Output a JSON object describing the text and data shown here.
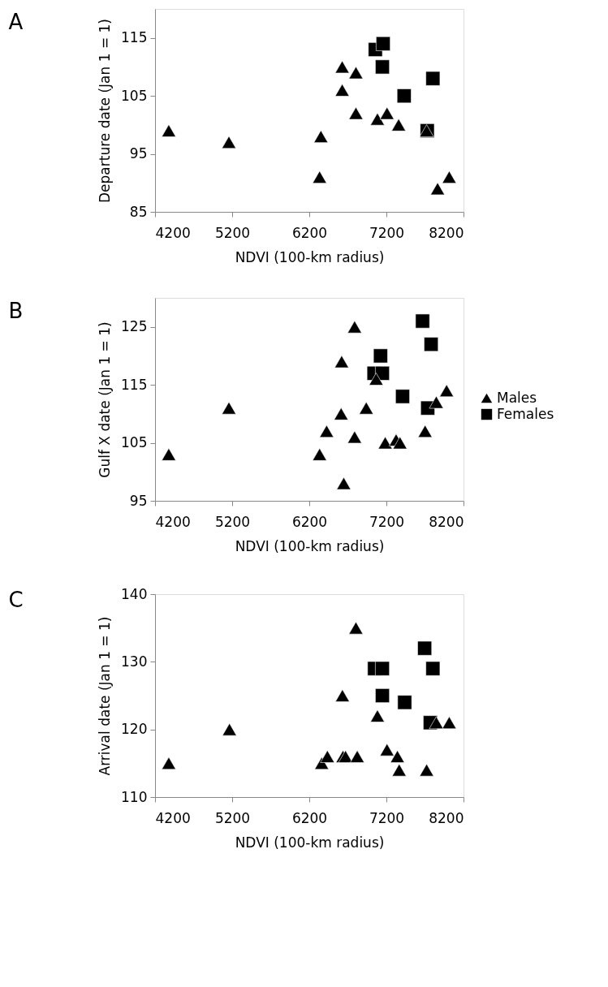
{
  "chart_data": [
    {
      "type": "scatter",
      "title": "A",
      "xlabel": "NDVI (100-km radius)",
      "ylabel": "Departure date (Jan 1 = 1)",
      "xlim": [
        4200,
        8200
      ],
      "xticks": [
        4200,
        5200,
        6200,
        7200,
        8200
      ],
      "ylim": [
        85,
        120
      ],
      "yticks": [
        85,
        95,
        105,
        115
      ],
      "grid": false,
      "legend": false,
      "series": [
        {
          "color": "#000000",
          "marker": "triangle",
          "x": [
            4378,
            5158,
            6351,
            6334,
            6627,
            6805,
            6627,
            6805,
            7084,
            7208,
            7359,
            7722,
            7864,
            8015
          ],
          "values": [
            99,
            97,
            98,
            91,
            110,
            109,
            106,
            102,
            101,
            102,
            100,
            99,
            89,
            91
          ]
        },
        {
          "color": "#000000",
          "marker": "square",
          "x": [
            7057,
            7158,
            7148,
            7430,
            7803,
            7730
          ],
          "values": [
            113,
            114,
            110,
            105,
            108,
            99
          ]
        }
      ]
    },
    {
      "type": "scatter",
      "title": "B",
      "xlabel": "NDVI (100-km radius)",
      "ylabel": "Gulf X date (Jan 1 = 1)",
      "xlim": [
        4200,
        8200
      ],
      "xticks": [
        4200,
        5200,
        6200,
        7200,
        8200
      ],
      "ylim": [
        95,
        130
      ],
      "yticks": [
        95,
        105,
        115,
        125
      ],
      "grid": false,
      "legend": "right",
      "series": [
        {
          "name": "Males",
          "color": "#000000",
          "marker": "triangle",
          "x": [
            4378,
            5158,
            6788,
            6620,
            7067,
            7981,
            7847,
            6939,
            6613,
            6425,
            6788,
            6334,
            6647,
            7185,
            7326,
            7376,
            7702
          ],
          "values": [
            103,
            111,
            125,
            119,
            116,
            114,
            112,
            111,
            110,
            107,
            106,
            103,
            98,
            105,
            105.5,
            105,
            107
          ]
        },
        {
          "name": "Females",
          "color": "#000000",
          "marker": "square",
          "x": [
            7669,
            7780,
            7124,
            7040,
            7148,
            7410,
            7736
          ],
          "values": [
            126,
            122,
            120,
            117,
            117,
            113,
            111
          ]
        }
      ]
    },
    {
      "type": "scatter",
      "title": "C",
      "xlabel": "NDVI (100-km radius)",
      "ylabel": "Arrival date (Jan 1 = 1)",
      "xlim": [
        4200,
        8200
      ],
      "xticks": [
        4200,
        5200,
        6200,
        7200,
        8200
      ],
      "ylim": [
        110,
        140
      ],
      "yticks": [
        110,
        120,
        130,
        140
      ],
      "grid": false,
      "legend": false,
      "series": [
        {
          "color": "#000000",
          "marker": "triangle",
          "x": [
            4378,
            5165,
            6805,
            6630,
            7084,
            8015,
            7847,
            7208,
            7343,
            7366,
            7722,
            6361,
            6435,
            6637,
            6670,
            6822
          ],
          "values": [
            115,
            120,
            135,
            125,
            122,
            121,
            121,
            117,
            116,
            114,
            114,
            115,
            116,
            116,
            116,
            116
          ]
        },
        {
          "color": "#000000",
          "marker": "square",
          "x": [
            7696,
            7047,
            7148,
            7148,
            7437,
            7803,
            7769
          ],
          "values": [
            132,
            129,
            129,
            125,
            124,
            129,
            121
          ]
        }
      ]
    }
  ]
}
